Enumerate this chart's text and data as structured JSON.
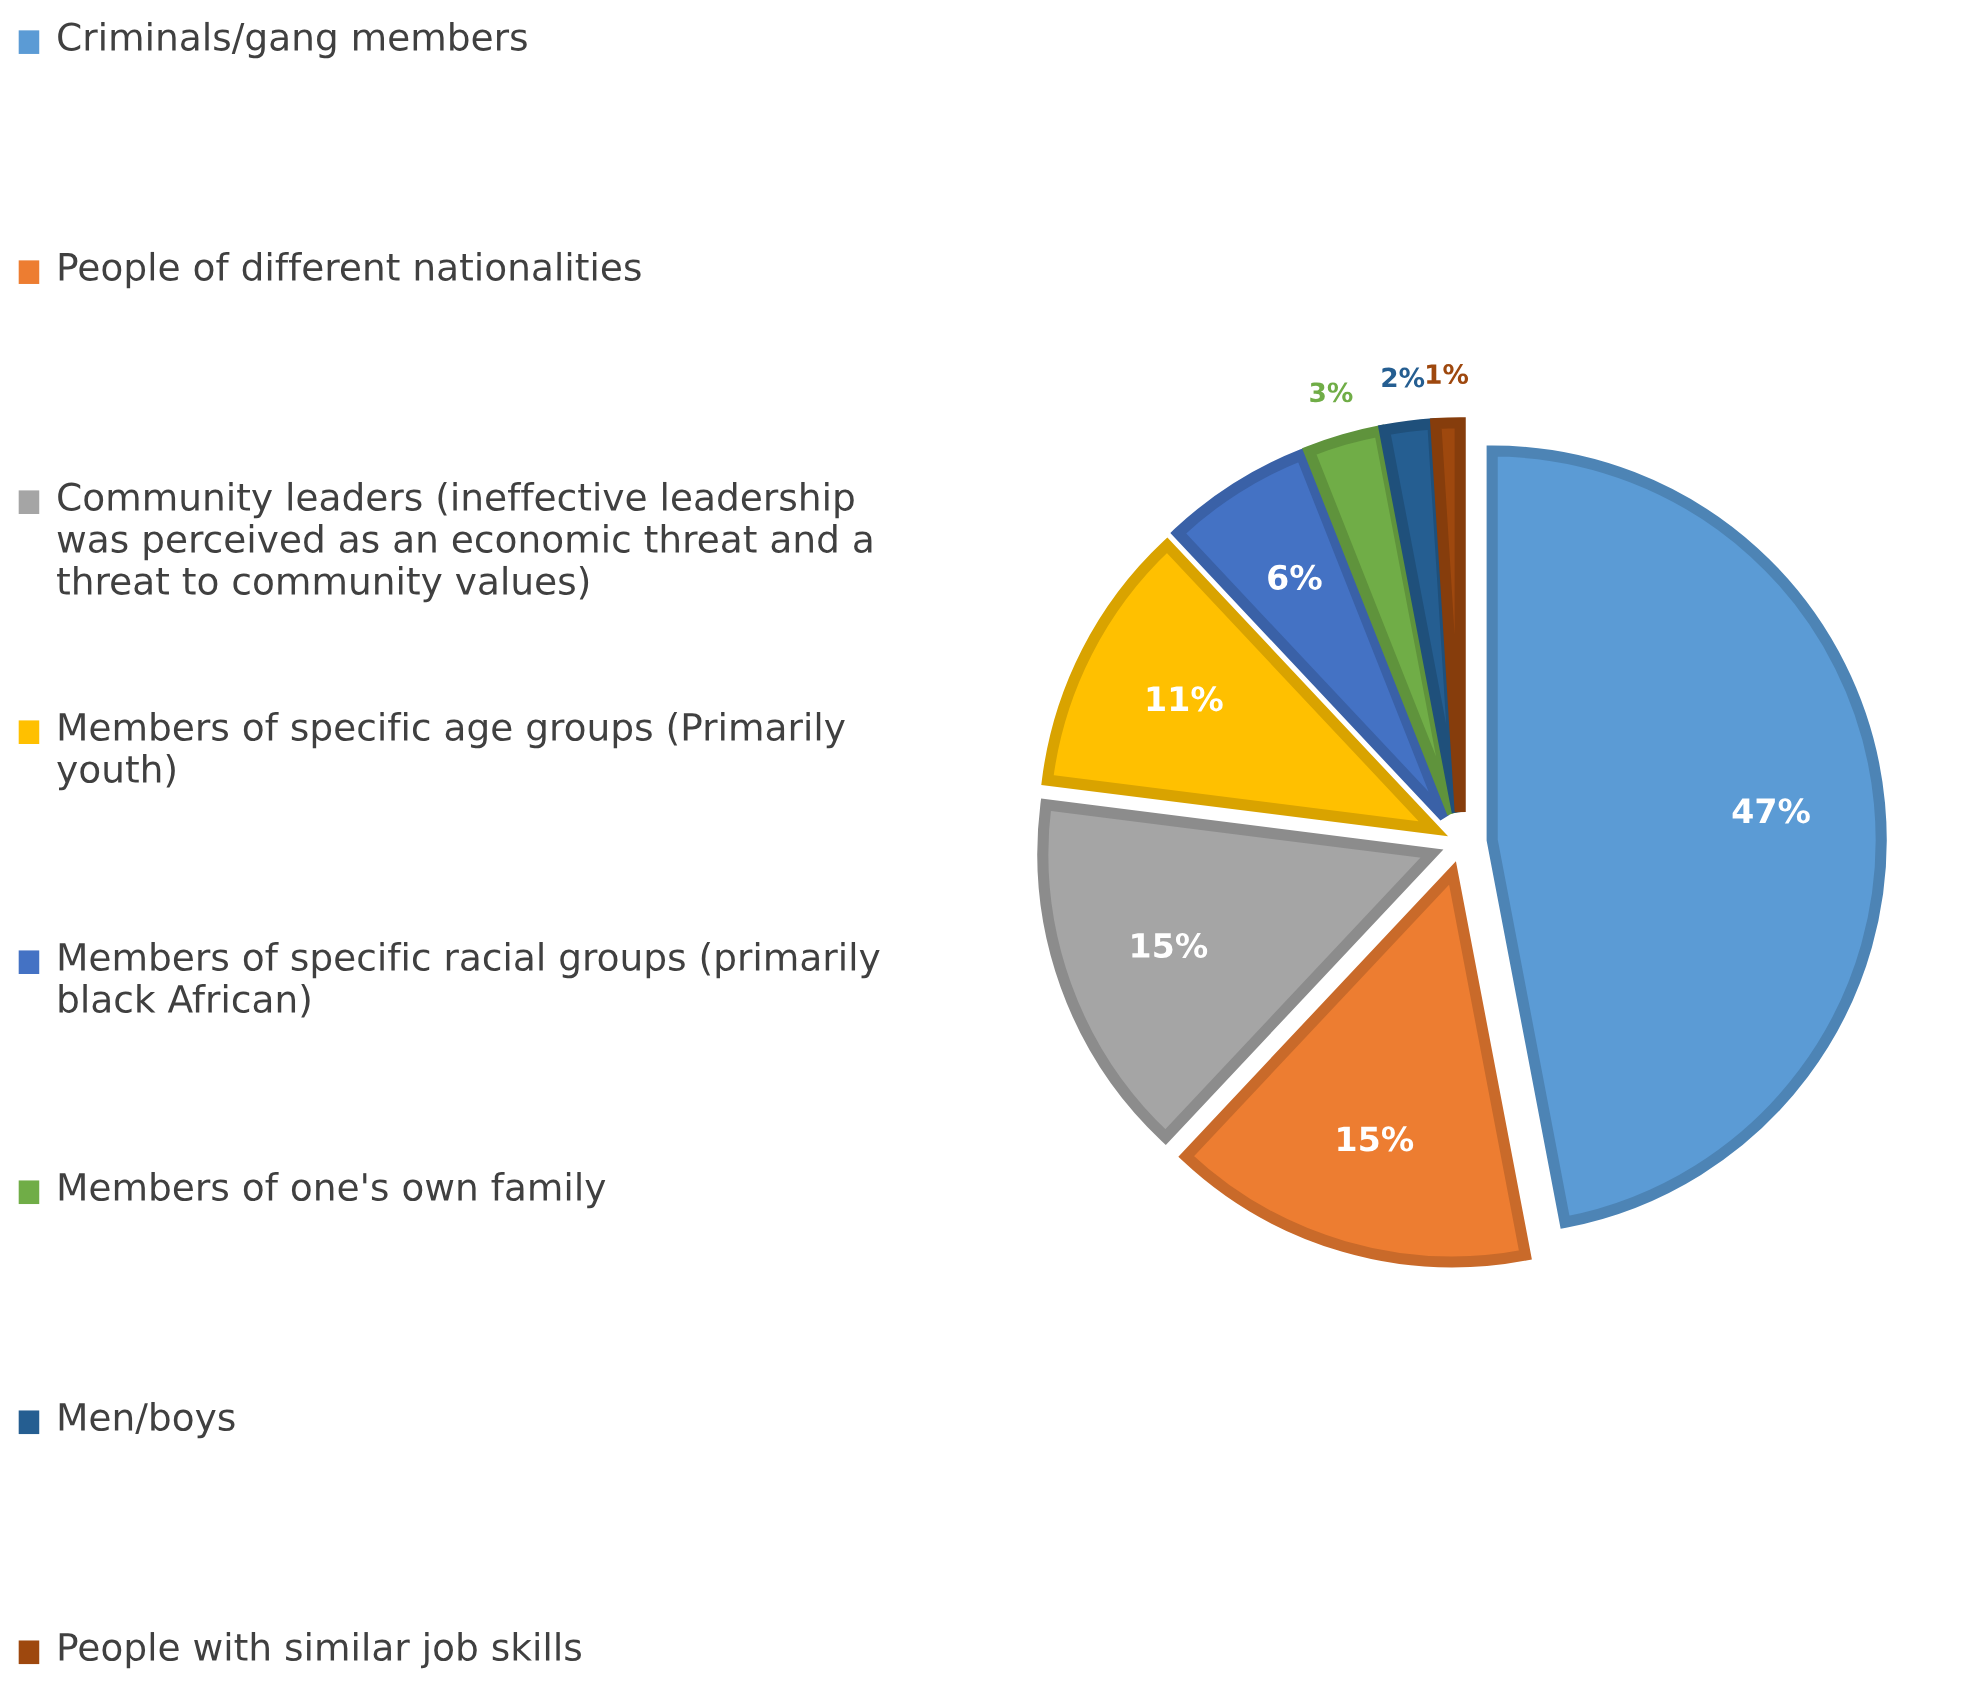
{
  "chart_data": {
    "type": "pie",
    "categories": [
      "Criminals/gang members",
      "People of different nationalities",
      "Community leaders (ineffective leadership was perceived as an economic threat and a threat to community values)",
      "Members of specific age groups (Primarily youth)",
      "Members of specific racial groups (primarily black African)",
      "Members of one's own family",
      "Men/boys",
      "People with similar job skills"
    ],
    "values": [
      47,
      15,
      15,
      11,
      6,
      3,
      2,
      1
    ],
    "colors": [
      "#5b9bd5",
      "#ed7d31",
      "#a5a5a5",
      "#ffc000",
      "#4472c4",
      "#70ad47",
      "#255e91",
      "#9e480e"
    ],
    "value_labels": [
      "47%",
      "15%",
      "15%",
      "11%",
      "6%",
      "3%",
      "2%",
      "1%"
    ],
    "legend": "left"
  }
}
